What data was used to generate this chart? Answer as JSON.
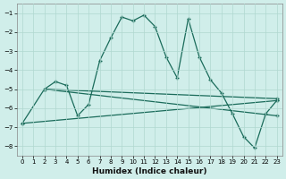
{
  "xlabel": "Humidex (Indice chaleur)",
  "bg_color": "#d0eeea",
  "grid_color": "#b0d8d0",
  "line_color": "#1a6b5a",
  "xlim": [
    -0.5,
    23.5
  ],
  "ylim": [
    -8.5,
    -0.5
  ],
  "yticks": [
    -8,
    -7,
    -6,
    -5,
    -4,
    -3,
    -2,
    -1
  ],
  "xticks": [
    0,
    1,
    2,
    3,
    4,
    5,
    6,
    7,
    8,
    9,
    10,
    11,
    12,
    13,
    14,
    15,
    16,
    17,
    18,
    19,
    20,
    21,
    22,
    23
  ],
  "line1_x": [
    0,
    2,
    3,
    4,
    5,
    6,
    7,
    8,
    9,
    10,
    11,
    12,
    13,
    14,
    15,
    16,
    17,
    18,
    19,
    20,
    21,
    22,
    23
  ],
  "line1_y": [
    -6.8,
    -5.0,
    -4.6,
    -4.8,
    -6.4,
    -5.8,
    -3.5,
    -2.3,
    -1.2,
    -1.4,
    -1.1,
    -1.7,
    -3.3,
    -4.4,
    -1.3,
    -3.3,
    -4.5,
    -5.2,
    -6.3,
    -7.5,
    -8.1,
    -6.3,
    -5.6
  ],
  "line2_x": [
    0,
    23
  ],
  "line2_y": [
    -6.8,
    -5.6
  ],
  "line3_x": [
    2,
    23
  ],
  "line3_y": [
    -5.0,
    -5.5
  ],
  "line4_x": [
    2,
    23
  ],
  "line4_y": [
    -5.0,
    -6.4
  ]
}
